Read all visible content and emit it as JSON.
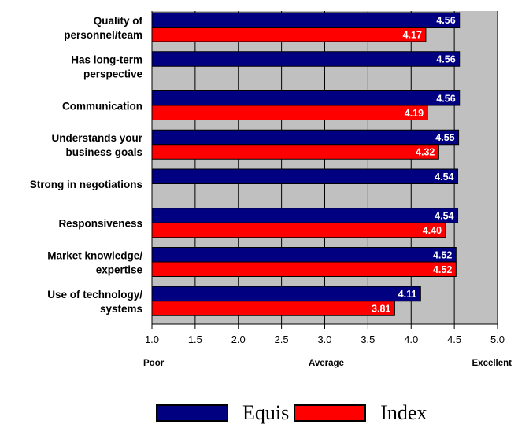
{
  "chart_data": {
    "type": "bar",
    "orientation": "horizontal",
    "categories": [
      [
        "Quality of",
        "personnel/team"
      ],
      [
        "Has long-term",
        "perspective"
      ],
      [
        "Communication"
      ],
      [
        "Understands your",
        "business goals"
      ],
      [
        "Strong in negotiations"
      ],
      [
        "Responsiveness"
      ],
      [
        "Market knowledge/",
        "expertise"
      ],
      [
        "Use of technology/",
        "systems"
      ]
    ],
    "series": [
      {
        "name": "Equis",
        "color": "#000080",
        "values": [
          4.56,
          4.56,
          4.56,
          4.55,
          4.54,
          4.54,
          4.52,
          4.11
        ],
        "labels": [
          "4.56",
          "4.56",
          "4.56",
          "4.55",
          "4.54",
          "4.54",
          "4.52",
          "4.11"
        ]
      },
      {
        "name": "Index",
        "color": "#ff0000",
        "values": [
          4.17,
          null,
          4.19,
          4.32,
          null,
          4.4,
          4.52,
          3.81
        ],
        "labels": [
          "4.17",
          null,
          "4.19",
          "4.32",
          null,
          "4.40",
          "4.52",
          "3.81"
        ]
      }
    ],
    "xlim": [
      1.0,
      5.0
    ],
    "xticks": [
      1.0,
      1.5,
      2.0,
      2.5,
      3.0,
      3.5,
      4.0,
      4.5,
      5.0
    ],
    "xtick_labels": [
      "1.0",
      "1.5",
      "2.0",
      "2.5",
      "3.0",
      "3.5",
      "4.0",
      "4.5",
      "5.0"
    ],
    "scale_labels": [
      {
        "text": "Poor",
        "anchor": "start"
      },
      {
        "text": "Average",
        "anchor": "middle"
      },
      {
        "text": "Excellent",
        "anchor": "end"
      }
    ],
    "background_color": "#c0c0c0",
    "gridlines": true,
    "legend_position": "bottom"
  }
}
